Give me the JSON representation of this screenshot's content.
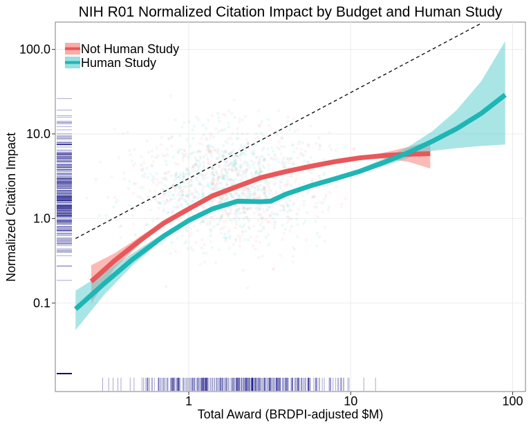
{
  "chart_data": {
    "type": "line",
    "title": "NIH R01 Normalized Citation Impact by Budget and Human Study",
    "xlabel": "Total Award (BRDPI-adjusted $M)",
    "ylabel": "Normalized Citation Impact",
    "x_scale": "log",
    "y_scale": "log",
    "xlim": [
      0.15,
      120
    ],
    "ylim": [
      0.009,
      210
    ],
    "x_ticks": [
      {
        "value": 1,
        "label": "1"
      },
      {
        "value": 10,
        "label": "10"
      },
      {
        "value": 100,
        "label": "100"
      }
    ],
    "y_ticks": [
      {
        "value": 0.1,
        "label": "0.1"
      },
      {
        "value": 1,
        "label": "1.0"
      },
      {
        "value": 10,
        "label": "10.0"
      },
      {
        "value": 100,
        "label": "100.0"
      }
    ],
    "grid": true,
    "legend_position": "top-left",
    "reference_line": {
      "style": "dashed",
      "x": [
        0.2,
        63
      ],
      "y": [
        0.58,
        200
      ]
    },
    "series": [
      {
        "name": "Not Human Study",
        "color": "#E8575A",
        "band_color": "#F8766D",
        "x": [
          0.25,
          0.35,
          0.5,
          0.7,
          1.0,
          1.4,
          2.0,
          2.8,
          4.0,
          5.7,
          8.0,
          11.3,
          16.0,
          22.6,
          31.0
        ],
        "y": [
          0.18,
          0.32,
          0.55,
          0.88,
          1.3,
          1.85,
          2.4,
          3.05,
          3.6,
          4.15,
          4.7,
          5.2,
          5.55,
          5.75,
          5.85
        ],
        "lower": [
          0.1,
          0.26,
          0.5,
          0.84,
          1.25,
          1.8,
          2.35,
          3.0,
          3.55,
          4.08,
          4.6,
          5.0,
          5.1,
          4.7,
          3.9
        ],
        "upper": [
          0.28,
          0.39,
          0.61,
          0.93,
          1.35,
          1.9,
          2.45,
          3.1,
          3.65,
          4.22,
          4.8,
          5.4,
          6.0,
          7.0,
          8.2
        ]
      },
      {
        "name": "Human Study",
        "color": "#1FB5B5",
        "band_color": "#54CBCB",
        "x": [
          0.2,
          0.3,
          0.45,
          0.7,
          1.0,
          1.4,
          2.0,
          2.8,
          3.2,
          4.0,
          5.7,
          8.0,
          11.3,
          16.0,
          22.6,
          32.0,
          45.0,
          64.0,
          90.0
        ],
        "y": [
          0.085,
          0.17,
          0.33,
          0.62,
          0.95,
          1.3,
          1.6,
          1.58,
          1.6,
          1.95,
          2.45,
          2.95,
          3.6,
          4.6,
          6.0,
          8.2,
          11.5,
          17.5,
          29.0
        ],
        "lower": [
          0.048,
          0.125,
          0.28,
          0.58,
          0.9,
          1.24,
          1.53,
          1.52,
          1.54,
          1.88,
          2.36,
          2.82,
          3.4,
          4.2,
          5.2,
          6.3,
          6.8,
          7.2,
          7.5
        ],
        "upper": [
          0.14,
          0.23,
          0.39,
          0.67,
          1.0,
          1.36,
          1.67,
          1.64,
          1.66,
          2.02,
          2.55,
          3.1,
          3.85,
          5.1,
          7.0,
          10.8,
          19.0,
          42.0,
          125.0
        ]
      }
    ]
  }
}
